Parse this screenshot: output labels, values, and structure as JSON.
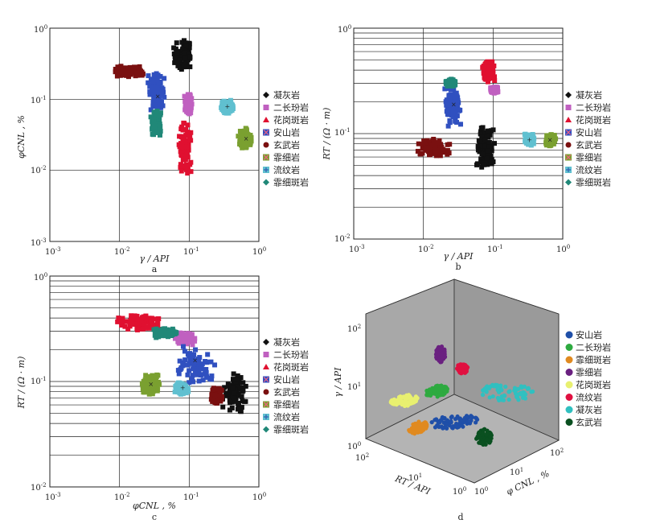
{
  "figure": {
    "panels": [
      {
        "id": "a",
        "caption": "a",
        "x_label": "γ / API",
        "y_label": "φCNL , %",
        "x_ticks": [
          "10-3",
          "10-2",
          "10-1",
          "100"
        ],
        "y_ticks": [
          "10-2",
          "10-1",
          "100"
        ]
      },
      {
        "id": "b",
        "caption": "b",
        "x_label": "γ / API",
        "y_label": "RT / (Ω · m)",
        "x_ticks": [
          "10-3",
          "10-2",
          "10-1",
          "100"
        ],
        "y_ticks": [
          "10-2",
          "10-1",
          "100"
        ]
      },
      {
        "id": "c",
        "caption": "c",
        "x_label": "φCNL , %",
        "y_label": "RT / (Ω · m)",
        "x_ticks": [
          "10-3",
          "10-2",
          "10-1",
          "100"
        ],
        "y_ticks": [
          "10-2",
          "10-1",
          "100"
        ]
      },
      {
        "id": "d",
        "caption": "d",
        "z_label": "γ / API",
        "x_label": "RT / API",
        "y_label": "φ CNL , %",
        "z_ticks": [
          "100",
          "101",
          "102"
        ],
        "rt_ticks": [
          "102",
          "101",
          "100"
        ],
        "phi_ticks": [
          "100",
          "101",
          "102"
        ]
      }
    ],
    "legend_2d": [
      {
        "label": "凝灰岩",
        "color": "#111111",
        "marker": "diamond"
      },
      {
        "label": "二长玢岩",
        "color": "#c060c0",
        "marker": "square"
      },
      {
        "label": "花岗斑岩",
        "color": "#e01030",
        "marker": "triangle"
      },
      {
        "label": "安山岩",
        "color": "#3050c0",
        "marker": "x-square"
      },
      {
        "label": "玄武岩",
        "color": "#7a1010",
        "marker": "circle"
      },
      {
        "label": "霏细岩",
        "color": "#7aa030",
        "marker": "x-square"
      },
      {
        "label": "流纹岩",
        "color": "#60c0d0",
        "marker": "plus-square"
      },
      {
        "label": "霏细斑岩",
        "color": "#208878",
        "marker": "diamond"
      }
    ],
    "legend_3d": [
      {
        "label": "安山岩",
        "color": "#1f4fa8"
      },
      {
        "label": "二长玢岩",
        "color": "#2eaa40"
      },
      {
        "label": "霏细斑岩",
        "color": "#e08a20"
      },
      {
        "label": "霏细岩",
        "color": "#6a2080"
      },
      {
        "label": "花岗斑岩",
        "color": "#e8f070"
      },
      {
        "label": "流纹岩",
        "color": "#e01040"
      },
      {
        "label": "凝灰岩",
        "color": "#30c0c0"
      },
      {
        "label": "玄武岩",
        "color": "#0a5020"
      }
    ]
  },
  "chart_data": [
    {
      "type": "scatter",
      "panel": "a",
      "xlabel": "γ / API",
      "ylabel": "φCNL , %",
      "x_scale": "log",
      "y_scale": "log",
      "xlim": [
        0.001,
        1
      ],
      "ylim": [
        0.001,
        1
      ],
      "grid": true,
      "legend": "right",
      "series": [
        {
          "name": "凝灰岩",
          "x_range": [
            0.055,
            0.11
          ],
          "y_range": [
            0.25,
            0.7
          ],
          "center": [
            0.075,
            0.45
          ]
        },
        {
          "name": "二长玢岩",
          "x_range": [
            0.085,
            0.11
          ],
          "y_range": [
            0.06,
            0.13
          ],
          "center": [
            0.095,
            0.1
          ]
        },
        {
          "name": "花岗斑岩",
          "x_range": [
            0.07,
            0.11
          ],
          "y_range": [
            0.008,
            0.05
          ],
          "center": [
            0.09,
            0.02
          ]
        },
        {
          "name": "安山岩",
          "x_range": [
            0.025,
            0.045
          ],
          "y_range": [
            0.06,
            0.25
          ],
          "center": [
            0.035,
            0.11
          ]
        },
        {
          "name": "玄武岩",
          "x_range": [
            0.008,
            0.025
          ],
          "y_range": [
            0.2,
            0.3
          ],
          "center": [
            0.014,
            0.25
          ]
        },
        {
          "name": "霏细岩",
          "x_range": [
            0.5,
            0.8
          ],
          "y_range": [
            0.02,
            0.04
          ],
          "center": [
            0.65,
            0.028
          ]
        },
        {
          "name": "流纹岩",
          "x_range": [
            0.28,
            0.45
          ],
          "y_range": [
            0.06,
            0.1
          ],
          "center": [
            0.35,
            0.08
          ]
        },
        {
          "name": "霏细斑岩",
          "x_range": [
            0.028,
            0.04
          ],
          "y_range": [
            0.03,
            0.07
          ],
          "center": [
            0.032,
            0.045
          ]
        }
      ]
    },
    {
      "type": "scatter",
      "panel": "b",
      "xlabel": "γ / API",
      "ylabel": "RT / (Ω · m)",
      "x_scale": "log",
      "y_scale": "log",
      "xlim": [
        0.001,
        1
      ],
      "ylim": [
        0.01,
        1
      ],
      "grid": true,
      "legend": "right",
      "series": [
        {
          "name": "凝灰岩",
          "x_range": [
            0.055,
            0.11
          ],
          "y_range": [
            0.045,
            0.12
          ],
          "center": [
            0.075,
            0.075
          ]
        },
        {
          "name": "二长玢岩",
          "x_range": [
            0.09,
            0.12
          ],
          "y_range": [
            0.24,
            0.28
          ],
          "center": [
            0.1,
            0.26
          ]
        },
        {
          "name": "花岗斑岩",
          "x_range": [
            0.07,
            0.11
          ],
          "y_range": [
            0.3,
            0.5
          ],
          "center": [
            0.085,
            0.4
          ]
        },
        {
          "name": "安山岩",
          "x_range": [
            0.02,
            0.035
          ],
          "y_range": [
            0.11,
            0.3
          ],
          "center": [
            0.027,
            0.19
          ]
        },
        {
          "name": "玄武岩",
          "x_range": [
            0.008,
            0.025
          ],
          "y_range": [
            0.06,
            0.09
          ],
          "center": [
            0.013,
            0.075
          ]
        },
        {
          "name": "霏细岩",
          "x_range": [
            0.55,
            0.8
          ],
          "y_range": [
            0.075,
            0.1
          ],
          "center": [
            0.65,
            0.088
          ]
        },
        {
          "name": "流纹岩",
          "x_range": [
            0.28,
            0.4
          ],
          "y_range": [
            0.075,
            0.1
          ],
          "center": [
            0.33,
            0.088
          ]
        },
        {
          "name": "霏细斑岩",
          "x_range": [
            0.02,
            0.03
          ],
          "y_range": [
            0.28,
            0.33
          ],
          "center": [
            0.024,
            0.3
          ]
        }
      ]
    },
    {
      "type": "scatter",
      "panel": "c",
      "xlabel": "φCNL , %",
      "ylabel": "RT / (Ω · m)",
      "x_scale": "log",
      "y_scale": "log",
      "xlim": [
        0.001,
        1
      ],
      "ylim": [
        0.01,
        1
      ],
      "grid": true,
      "legend": "right",
      "series": [
        {
          "name": "凝灰岩",
          "x_range": [
            0.28,
            0.7
          ],
          "y_range": [
            0.045,
            0.13
          ],
          "center": [
            0.45,
            0.075
          ]
        },
        {
          "name": "二长玢岩",
          "x_range": [
            0.06,
            0.13
          ],
          "y_range": [
            0.22,
            0.3
          ],
          "center": [
            0.09,
            0.26
          ]
        },
        {
          "name": "花岗斑岩",
          "x_range": [
            0.008,
            0.05
          ],
          "y_range": [
            0.3,
            0.45
          ],
          "center": [
            0.02,
            0.38
          ]
        },
        {
          "name": "安山岩",
          "x_range": [
            0.06,
            0.25
          ],
          "y_range": [
            0.09,
            0.22
          ],
          "center": [
            0.12,
            0.16
          ]
        },
        {
          "name": "玄武岩",
          "x_range": [
            0.2,
            0.3
          ],
          "y_range": [
            0.06,
            0.09
          ],
          "center": [
            0.25,
            0.075
          ]
        },
        {
          "name": "霏细岩",
          "x_range": [
            0.02,
            0.04
          ],
          "y_range": [
            0.075,
            0.12
          ],
          "center": [
            0.028,
            0.095
          ]
        },
        {
          "name": "流纹岩",
          "x_range": [
            0.06,
            0.1
          ],
          "y_range": [
            0.075,
            0.1
          ],
          "center": [
            0.08,
            0.088
          ]
        },
        {
          "name": "霏细斑岩",
          "x_range": [
            0.03,
            0.07
          ],
          "y_range": [
            0.26,
            0.32
          ],
          "center": [
            0.045,
            0.29
          ]
        }
      ]
    },
    {
      "type": "scatter",
      "panel": "d",
      "projection": "3d",
      "z_label": "γ / API",
      "x_label": "RT / API",
      "y_label": "φ CNL , %",
      "legend": "right",
      "series": [
        {
          "name": "安山岩"
        },
        {
          "name": "二长玢岩"
        },
        {
          "name": "霏细斑岩"
        },
        {
          "name": "霏细岩"
        },
        {
          "name": "花岗斑岩"
        },
        {
          "name": "流纹岩"
        },
        {
          "name": "凝灰岩"
        },
        {
          "name": "玄武岩"
        }
      ]
    }
  ]
}
